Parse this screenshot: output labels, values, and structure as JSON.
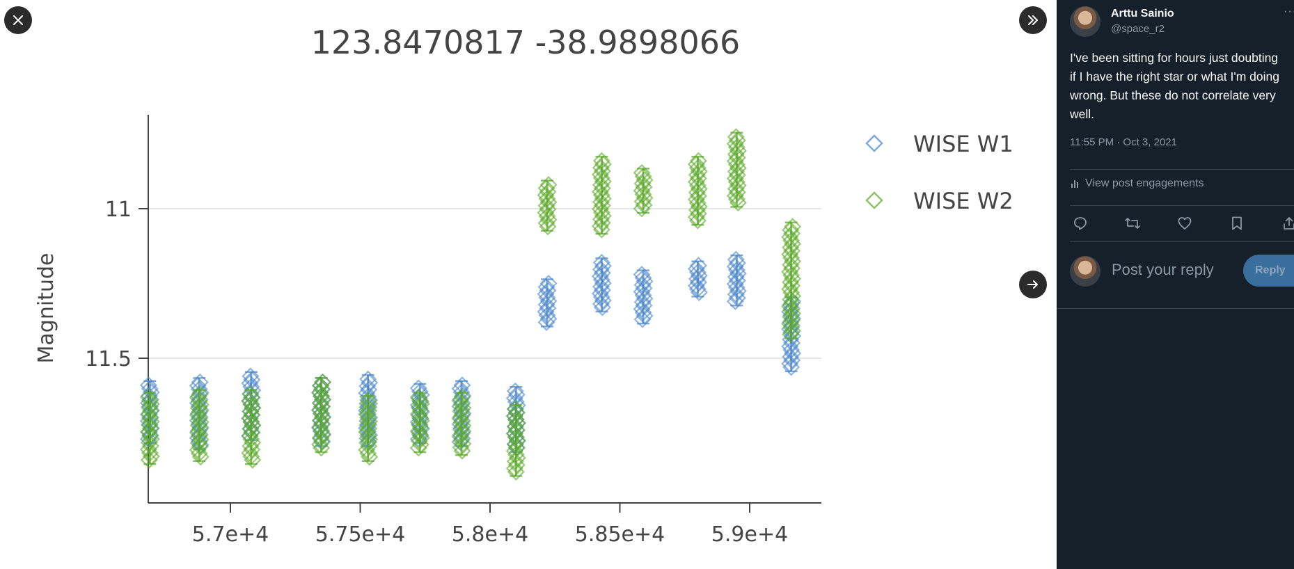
{
  "viewer": {
    "close_icon": "close-icon",
    "collapse_icon": "double-chevron-right-icon",
    "next_icon": "arrow-right-icon"
  },
  "chart_data": {
    "type": "scatter",
    "title": "123.8470817 -38.9898066",
    "xlabel": "",
    "ylabel": "Magnitude",
    "x_ticks": [
      57000,
      57500,
      58000,
      58500,
      59000
    ],
    "x_tick_labels": [
      "5.7e+4",
      "5.75e+4",
      "5.8e+4",
      "5.85e+4",
      "5.9e+4"
    ],
    "y_ticks": [
      11,
      11.5
    ],
    "y_tick_labels": [
      "11",
      "11.5"
    ],
    "ylim": [
      11.97,
      10.67
    ],
    "xlim": [
      56380,
      58960
    ],
    "y_axis_inverted": true,
    "grid": true,
    "legend": {
      "position": "top-right",
      "marker": "open-diamond"
    },
    "series": [
      {
        "name": "WISE W1",
        "color": "#4a86c8",
        "groups": [
          {
            "x": 56690,
            "y_min": 11.59,
            "y_max": 11.77
          },
          {
            "x": 56880,
            "y_min": 11.58,
            "y_max": 11.79
          },
          {
            "x": 57080,
            "y_min": 11.56,
            "y_max": 11.76
          },
          {
            "x": 57350,
            "y_min": 11.58,
            "y_max": 11.78
          },
          {
            "x": 57530,
            "y_min": 11.57,
            "y_max": 11.78
          },
          {
            "x": 57730,
            "y_min": 11.6,
            "y_max": 11.77
          },
          {
            "x": 57890,
            "y_min": 11.59,
            "y_max": 11.78
          },
          {
            "x": 58100,
            "y_min": 11.61,
            "y_max": 11.8
          },
          {
            "x": 58220,
            "y_min": 11.25,
            "y_max": 11.38
          },
          {
            "x": 58430,
            "y_min": 11.18,
            "y_max": 11.33
          },
          {
            "x": 58590,
            "y_min": 11.22,
            "y_max": 11.37
          },
          {
            "x": 58800,
            "y_min": 11.19,
            "y_max": 11.28
          },
          {
            "x": 58950,
            "y_min": 11.17,
            "y_max": 11.31
          },
          {
            "x": 59160,
            "y_min": 11.31,
            "y_max": 11.53
          }
        ]
      },
      {
        "name": "WISE W2",
        "color": "#5aa827",
        "groups": [
          {
            "x": 56690,
            "y_min": 11.63,
            "y_max": 11.84
          },
          {
            "x": 56880,
            "y_min": 11.62,
            "y_max": 11.83
          },
          {
            "x": 57080,
            "y_min": 11.62,
            "y_max": 11.84
          },
          {
            "x": 57350,
            "y_min": 11.58,
            "y_max": 11.8
          },
          {
            "x": 57530,
            "y_min": 11.64,
            "y_max": 11.83
          },
          {
            "x": 57730,
            "y_min": 11.63,
            "y_max": 11.8
          },
          {
            "x": 57890,
            "y_min": 11.63,
            "y_max": 11.81
          },
          {
            "x": 58100,
            "y_min": 11.67,
            "y_max": 11.88
          },
          {
            "x": 58220,
            "y_min": 10.92,
            "y_max": 11.06
          },
          {
            "x": 58430,
            "y_min": 10.84,
            "y_max": 11.07
          },
          {
            "x": 58590,
            "y_min": 10.88,
            "y_max": 11.0
          },
          {
            "x": 58800,
            "y_min": 10.84,
            "y_max": 11.04
          },
          {
            "x": 58950,
            "y_min": 10.76,
            "y_max": 10.98
          },
          {
            "x": 59160,
            "y_min": 11.06,
            "y_max": 11.42
          }
        ]
      }
    ]
  },
  "tweet": {
    "author_name": "Arttu Sainio",
    "author_handle": "@space_r2",
    "more_label": "···",
    "text": "I've been sitting for hours just doubting if I have the right star or what I'm doing wrong. But these do not correlate very well.",
    "timestamp": "11:55 PM · Oct 3, 2021",
    "engagements_label": "View post engagements",
    "actions": [
      "reply-icon",
      "retweet-icon",
      "like-icon",
      "bookmark-icon",
      "share-icon"
    ]
  },
  "reply": {
    "placeholder": "Post your reply",
    "button_label": "Reply"
  },
  "colors": {
    "sidebar_bg": "#15202b",
    "w1": "#4a86c8",
    "w2": "#5aa827",
    "reply_button": "#3a6f9d"
  }
}
